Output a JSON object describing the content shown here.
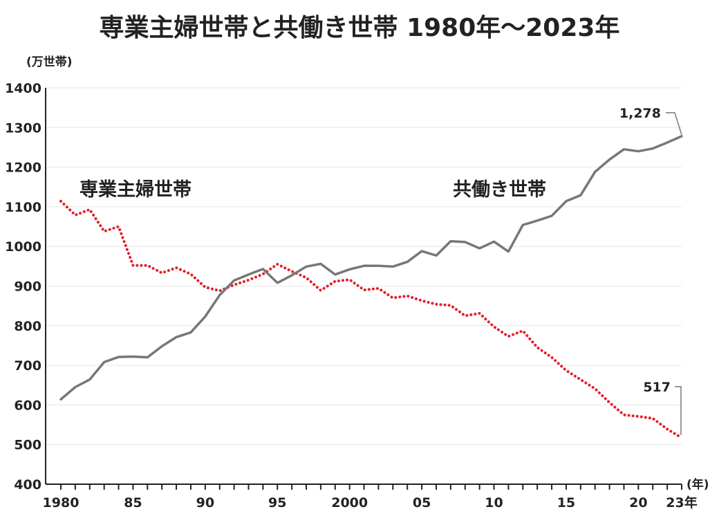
{
  "chart_data": {
    "type": "line",
    "title": "専業主婦世帯と共働き世帯 1980年～2023年",
    "ylabel": "(万世帯)",
    "xlabel": "(年)",
    "ylim": [
      400,
      1400
    ],
    "yticks": [
      400,
      500,
      600,
      700,
      800,
      900,
      1000,
      1100,
      1200,
      1300,
      1400
    ],
    "xticks": [
      {
        "year": 1980,
        "label": "1980"
      },
      {
        "year": 1985,
        "label": "85"
      },
      {
        "year": 1990,
        "label": "90"
      },
      {
        "year": 1995,
        "label": "95"
      },
      {
        "year": 2000,
        "label": "2000"
      },
      {
        "year": 2005,
        "label": "05"
      },
      {
        "year": 2010,
        "label": "10"
      },
      {
        "year": 2015,
        "label": "15"
      },
      {
        "year": 2020,
        "label": "20"
      },
      {
        "year": 2023,
        "label": "23年"
      }
    ],
    "x": [
      1980,
      1981,
      1982,
      1983,
      1984,
      1985,
      1986,
      1987,
      1988,
      1989,
      1990,
      1991,
      1992,
      1993,
      1994,
      1995,
      1996,
      1997,
      1998,
      1999,
      2000,
      2001,
      2002,
      2003,
      2004,
      2005,
      2006,
      2007,
      2008,
      2009,
      2010,
      2011,
      2012,
      2013,
      2014,
      2015,
      2016,
      2017,
      2018,
      2019,
      2020,
      2021,
      2022,
      2023
    ],
    "grid": true,
    "series": [
      {
        "name": "専業主婦世帯",
        "color": "#e0202c",
        "style": "dotted",
        "values": [
          1114,
          1079,
          1093,
          1038,
          1050,
          952,
          952,
          933,
          946,
          930,
          897,
          888,
          903,
          915,
          930,
          955,
          937,
          921,
          889,
          912,
          916,
          890,
          894,
          870,
          875,
          863,
          854,
          851,
          825,
          831,
          797,
          773,
          787,
          745,
          720,
          687,
          664,
          641,
          606,
          575,
          571,
          566,
          539,
          517
        ],
        "end_label": "517"
      },
      {
        "name": "共働き世帯",
        "color": "#777777",
        "style": "solid",
        "values": [
          614,
          645,
          664,
          708,
          721,
          722,
          720,
          748,
          771,
          783,
          823,
          877,
          914,
          929,
          943,
          908,
          927,
          949,
          956,
          929,
          942,
          951,
          951,
          949,
          961,
          988,
          977,
          1013,
          1011,
          995,
          1012,
          987,
          1054,
          1065,
          1077,
          1114,
          1129,
          1188,
          1219,
          1245,
          1240,
          1247,
          1262,
          1278
        ],
        "end_label": "1,278"
      }
    ]
  }
}
